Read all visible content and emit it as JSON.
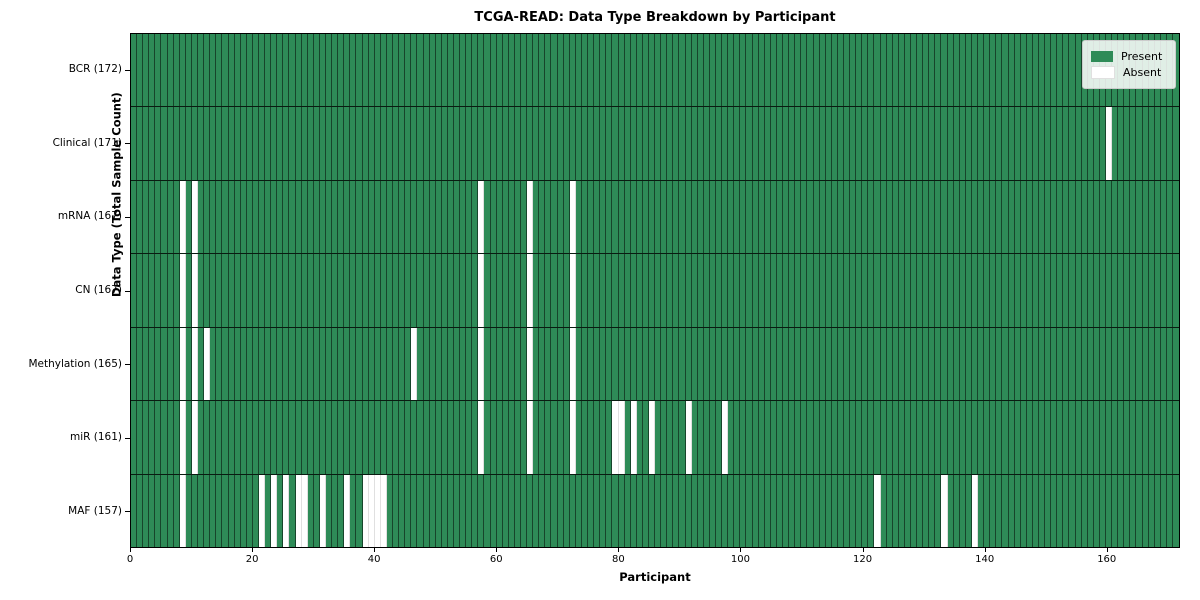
{
  "title": "TCGA-READ: Data Type Breakdown by Participant",
  "xlabel": "Participant",
  "ylabel": "Data Type (Total Sample Count)",
  "legend": {
    "present_label": "Present",
    "absent_label": "Absent"
  },
  "colors": {
    "present": "#2e8b57",
    "absent": "#ffffff"
  },
  "x_ticks": [
    0,
    20,
    40,
    60,
    80,
    100,
    120,
    140,
    160
  ],
  "n_participants": 172,
  "chart_data": {
    "type": "heatmap",
    "x_axis": "participant index, 0 to 172",
    "legend_position": "upper right",
    "rows": [
      {
        "label": "BCR (172)",
        "data_type": "BCR",
        "total": 172,
        "absent_participants": []
      },
      {
        "label": "Clinical (171)",
        "data_type": "Clinical",
        "total": 171,
        "absent_participants": [
          160
        ]
      },
      {
        "label": "mRNA (167)",
        "data_type": "mRNA",
        "total": 167,
        "absent_participants": [
          8,
          10,
          57,
          65,
          72
        ]
      },
      {
        "label": "CN (167)",
        "data_type": "CN",
        "total": 167,
        "absent_participants": [
          8,
          10,
          57,
          65,
          72
        ]
      },
      {
        "label": "Methylation (165)",
        "data_type": "Methylation",
        "total": 165,
        "absent_participants": [
          8,
          10,
          12,
          46,
          57,
          65,
          72
        ]
      },
      {
        "label": "miR (161)",
        "data_type": "miR",
        "total": 161,
        "absent_participants": [
          8,
          10,
          57,
          65,
          72,
          79,
          80,
          82,
          85,
          91,
          97
        ]
      },
      {
        "label": "MAF (157)",
        "data_type": "MAF",
        "total": 157,
        "absent_participants": [
          8,
          21,
          23,
          25,
          27,
          28,
          31,
          35,
          38,
          39,
          40,
          41,
          122,
          133,
          138
        ]
      }
    ]
  }
}
